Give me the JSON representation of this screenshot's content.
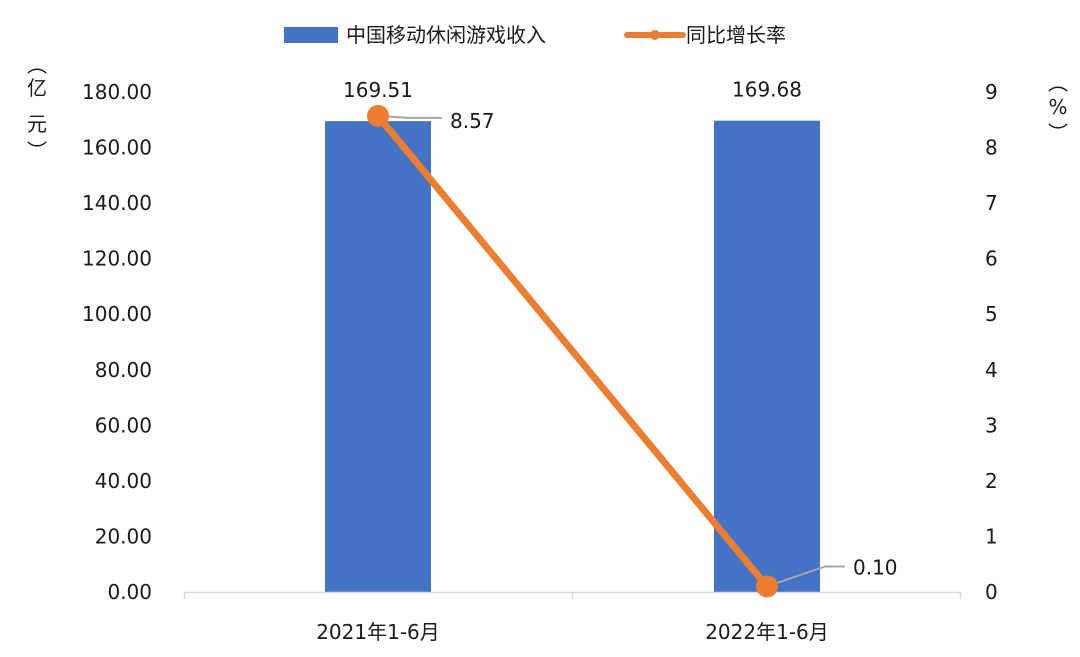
{
  "chart_data": {
    "type": "bar+line",
    "title": "",
    "categories": [
      "2021年1-6月",
      "2022年1-6月"
    ],
    "series": [
      {
        "name": "中国移动休闲游戏收入",
        "type": "bar",
        "axis": "left",
        "color": "#4472C4",
        "values": [
          169.51,
          169.68
        ],
        "labels": [
          "169.51",
          "169.68"
        ]
      },
      {
        "name": "同比增长率",
        "type": "line",
        "axis": "right",
        "color": "#ED7D31",
        "values": [
          8.57,
          0.1
        ],
        "labels": [
          "8.57",
          "0.10"
        ]
      }
    ],
    "ylabel": "（亿元）",
    "y2label": "（%）",
    "ylim": [
      0,
      180
    ],
    "y2lim": [
      0,
      9
    ],
    "yticks": [
      "0.00",
      "20.00",
      "40.00",
      "60.00",
      "80.00",
      "100.00",
      "120.00",
      "140.00",
      "160.00",
      "180.00"
    ],
    "y2ticks": [
      "0",
      "1",
      "2",
      "3",
      "4",
      "5",
      "6",
      "7",
      "8",
      "9"
    ],
    "grid": false,
    "legend_position": "top"
  },
  "legend": {
    "bar_label": "中国移动休闲游戏收入",
    "line_label": "同比增长率"
  },
  "axis": {
    "left_unit_chars": [
      "︵",
      "亿",
      "元",
      "︶"
    ],
    "right_unit_chars": [
      "︵",
      "%",
      "︶"
    ]
  }
}
